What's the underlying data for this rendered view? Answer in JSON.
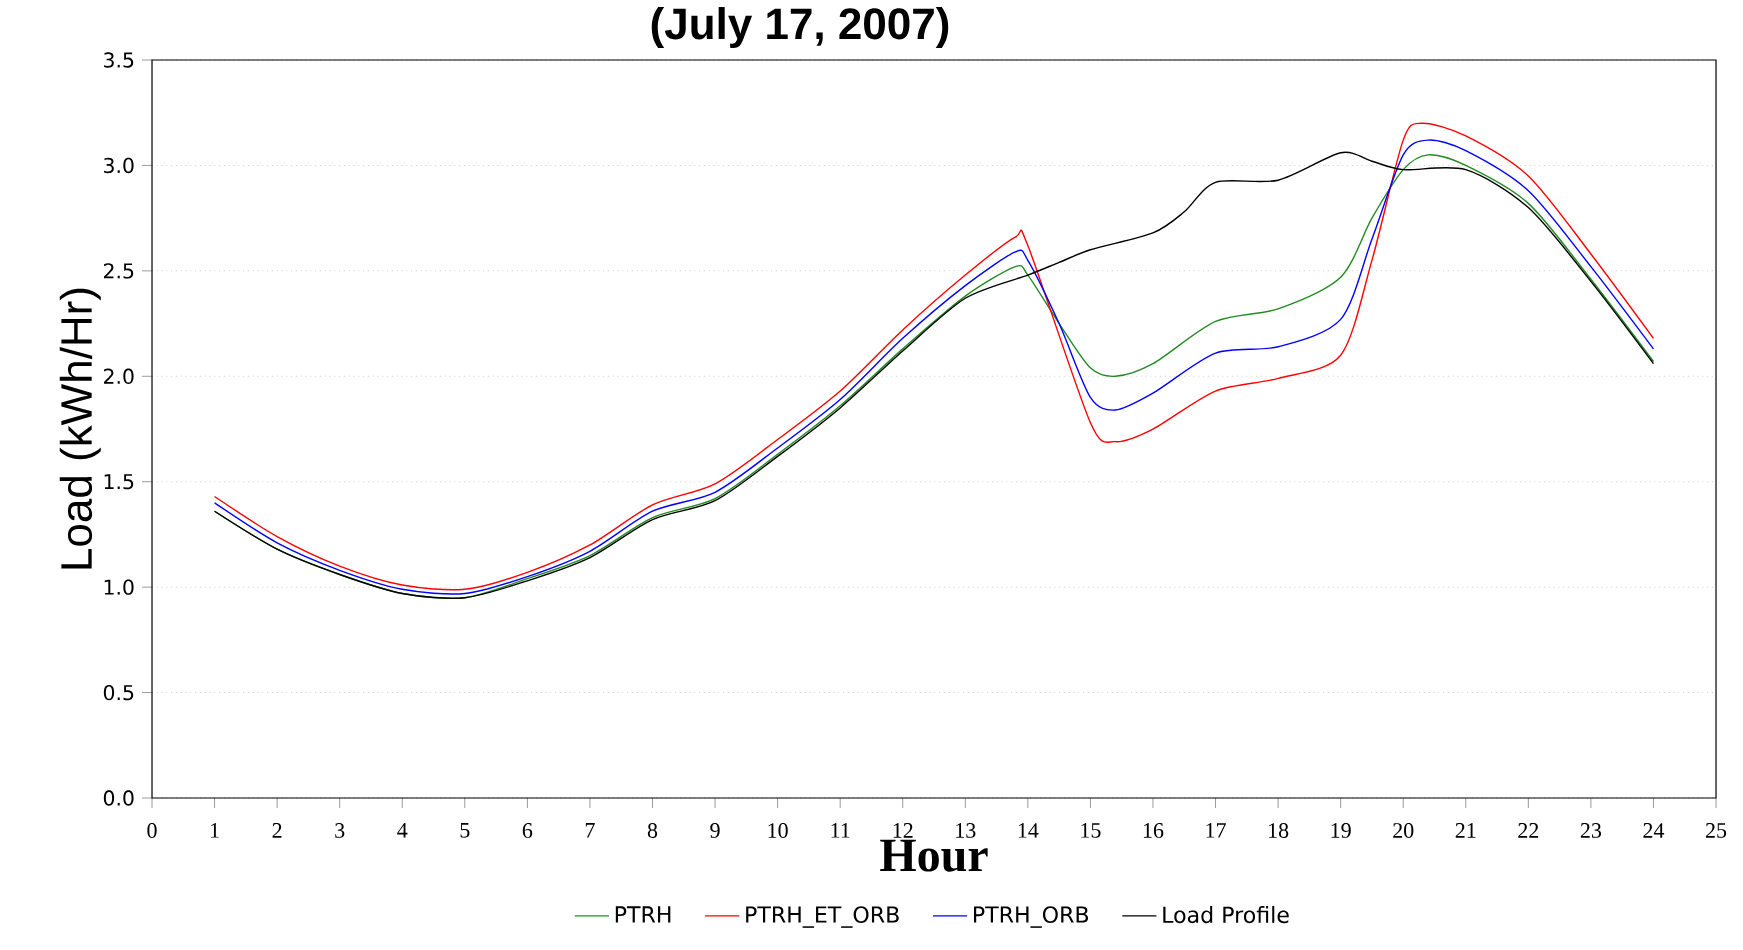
{
  "chart_data": {
    "type": "line",
    "title": "(July 17, 2007)",
    "xlabel": "Hour",
    "ylabel": "Load (kWh/Hr)",
    "xlim": [
      0,
      25
    ],
    "xticks": [
      0,
      1,
      2,
      3,
      4,
      5,
      6,
      7,
      8,
      9,
      10,
      11,
      12,
      13,
      14,
      15,
      16,
      17,
      18,
      19,
      20,
      21,
      22,
      23,
      24,
      25
    ],
    "ylim": [
      0,
      3.5
    ],
    "yticks": [
      {
        "value": 0,
        "label": "0.0"
      },
      {
        "value": 0.5,
        "label": "0.5"
      },
      {
        "value": 1,
        "label": "1.0"
      },
      {
        "value": 1.5,
        "label": "1.5"
      },
      {
        "value": 2,
        "label": "2.0"
      },
      {
        "value": 2.5,
        "label": "2.5"
      },
      {
        "value": 3,
        "label": "3.0"
      },
      {
        "value": 3.5,
        "label": "3.5"
      }
    ],
    "grid": "y",
    "legend": "bottom",
    "series": [
      {
        "name": "PTRH",
        "color": "#228b22",
        "x": [
          1,
          2,
          3,
          4,
          5,
          6,
          7,
          8,
          9,
          10,
          11,
          12,
          13,
          13.8,
          14,
          14.5,
          15,
          15.4,
          16,
          17,
          18,
          19,
          19.5,
          20,
          20.4,
          21,
          22,
          23,
          24
        ],
        "values": [
          1.36,
          1.18,
          1.06,
          0.97,
          0.95,
          1.04,
          1.15,
          1.33,
          1.42,
          1.63,
          1.86,
          2.13,
          2.38,
          2.52,
          2.48,
          2.25,
          2.04,
          2.0,
          2.06,
          2.26,
          2.32,
          2.47,
          2.75,
          2.98,
          3.05,
          3.0,
          2.82,
          2.46,
          2.07
        ]
      },
      {
        "name": "PTRH_ET_ORB",
        "color": "#ff0000",
        "x": [
          1,
          2,
          3,
          4,
          5,
          6,
          7,
          8,
          9,
          10,
          11,
          12,
          13,
          13.8,
          14,
          15,
          15.4,
          16,
          17,
          18,
          19,
          19.5,
          20,
          20.3,
          21,
          22,
          23,
          24
        ],
        "values": [
          1.43,
          1.24,
          1.1,
          1.01,
          0.99,
          1.07,
          1.2,
          1.39,
          1.49,
          1.7,
          1.93,
          2.22,
          2.48,
          2.66,
          2.62,
          1.78,
          1.69,
          1.75,
          1.93,
          1.99,
          2.1,
          2.55,
          3.12,
          3.2,
          3.14,
          2.95,
          2.58,
          2.18
        ]
      },
      {
        "name": "PTRH_ORB",
        "color": "#0000ff",
        "x": [
          1,
          2,
          3,
          4,
          5,
          6,
          7,
          8,
          9,
          10,
          11,
          12,
          13,
          13.8,
          14,
          14.5,
          15,
          15.4,
          16,
          17,
          18,
          19,
          19.5,
          20,
          20.4,
          21,
          22,
          23,
          24
        ],
        "values": [
          1.4,
          1.21,
          1.08,
          0.99,
          0.97,
          1.05,
          1.17,
          1.36,
          1.45,
          1.66,
          1.89,
          2.18,
          2.43,
          2.59,
          2.55,
          2.25,
          1.9,
          1.84,
          1.92,
          2.11,
          2.14,
          2.27,
          2.65,
          3.05,
          3.12,
          3.07,
          2.88,
          2.52,
          2.13
        ]
      },
      {
        "name": "Load Profile",
        "color": "#000000",
        "x": [
          1,
          2,
          3,
          4,
          5,
          6,
          7,
          8,
          9,
          10,
          11,
          12,
          13,
          14,
          14.5,
          15,
          16,
          16.5,
          17,
          18,
          19,
          19.5,
          20,
          21,
          22,
          23,
          24
        ],
        "values": [
          1.36,
          1.18,
          1.06,
          0.97,
          0.95,
          1.03,
          1.14,
          1.32,
          1.41,
          1.62,
          1.85,
          2.12,
          2.37,
          2.48,
          2.54,
          2.6,
          2.68,
          2.78,
          2.92,
          2.93,
          3.06,
          3.02,
          2.98,
          2.98,
          2.8,
          2.45,
          2.06
        ]
      }
    ]
  }
}
